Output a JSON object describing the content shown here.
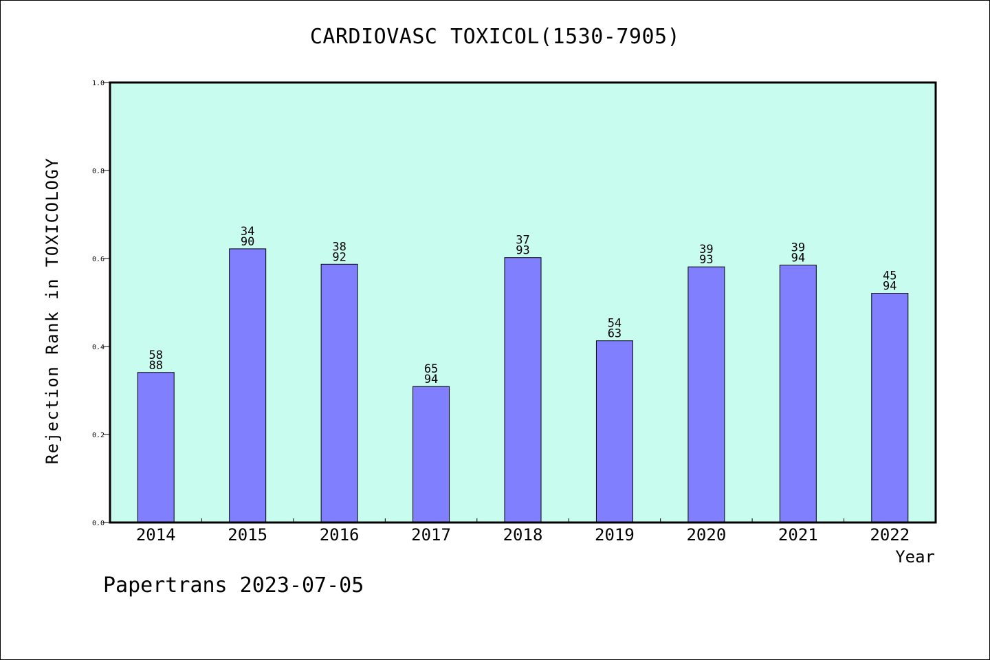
{
  "colors": {
    "plot_background": "#c8fcee",
    "bar_fill": "#8080ff",
    "axis": "#000000"
  },
  "footer": "Papertrans 2023-07-05",
  "chart_data": {
    "type": "bar",
    "title": "CARDIOVASC TOXICOL(1530-7905)",
    "xlabel": "Year",
    "ylabel": "Rejection Rank in TOXICOLOGY",
    "ylim": [
      0,
      1.0
    ],
    "yticks": [
      "0.0",
      "0.2",
      "0.4",
      "0.6",
      "0.8",
      "1.0"
    ],
    "grid": false,
    "categories": [
      "2014",
      "2015",
      "2016",
      "2017",
      "2018",
      "2019",
      "2020",
      "2021",
      "2022"
    ],
    "values": [
      0.341,
      0.622,
      0.587,
      0.309,
      0.602,
      0.413,
      0.581,
      0.585,
      0.521
    ],
    "labels_top": [
      "58",
      "34",
      "38",
      "65",
      "37",
      "54",
      "39",
      "39",
      "45"
    ],
    "labels_bottom": [
      "88",
      "90",
      "92",
      "94",
      "93",
      "63",
      "93",
      "94",
      "94"
    ]
  }
}
